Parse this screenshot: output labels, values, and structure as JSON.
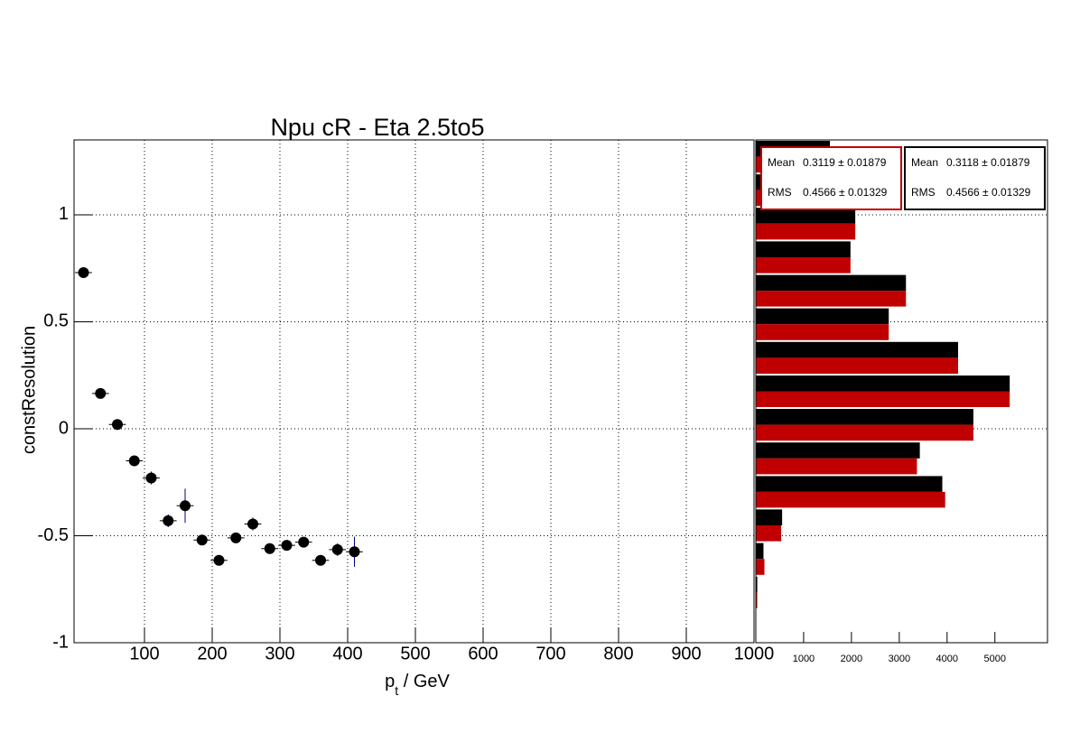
{
  "chart_data": [
    {
      "type": "errorbar",
      "title": "Npu cR - Eta 2.5to5",
      "y_label": "constResolution",
      "x_label": "p",
      "x_label_sub": "t",
      "x_label_rest": " / GeV",
      "x": [
        10,
        35,
        60,
        85,
        110,
        135,
        160,
        185,
        210,
        235,
        260,
        285,
        310,
        335,
        360,
        385,
        410
      ],
      "xerr": [
        12.5,
        12.5,
        12.5,
        12.5,
        12.5,
        12.5,
        12.5,
        12.5,
        12.5,
        12.5,
        12.5,
        12.5,
        12.5,
        12.5,
        12.5,
        12.5,
        12.5
      ],
      "values": [
        0.73,
        0.165,
        0.02,
        -0.15,
        -0.23,
        -0.43,
        -0.36,
        -0.52,
        -0.615,
        -0.51,
        -0.445,
        -0.56,
        -0.545,
        -0.53,
        -0.615,
        -0.565,
        -0.575
      ],
      "errors": [
        0.01,
        0.015,
        0.015,
        0.015,
        0.03,
        0.03,
        0.08,
        0.02,
        0.01,
        0.02,
        0.03,
        0.015,
        0.015,
        0.02,
        0.02,
        0.03,
        0.07
      ],
      "color": "#000000",
      "error_color": "#00008b",
      "xlim": [
        -4,
        1000
      ],
      "xticks": [
        100,
        200,
        300,
        400,
        500,
        600,
        700,
        800,
        900,
        1000
      ],
      "ylim": [
        -1,
        1.35
      ],
      "yticks": [
        -1,
        -0.5,
        0,
        0.5,
        1
      ],
      "grid": true
    },
    {
      "type": "hbar-histogram",
      "bins": [
        -1,
        -0.843,
        -0.687,
        -0.53,
        -0.373,
        -0.217,
        -0.06,
        0.097,
        0.253,
        0.41,
        0.567,
        0.723,
        0.88,
        1.037,
        1.193,
        1.35
      ],
      "series": [
        {
          "color": "#000000",
          "values": [
            0,
            30,
            160,
            550,
            3900,
            3430,
            4550,
            5310,
            4230,
            2780,
            3140,
            1980,
            2080,
            1500,
            1550
          ]
        },
        {
          "color": "#c00000",
          "values": [
            0,
            30,
            180,
            530,
            3960,
            3370,
            4550,
            5310,
            4230,
            2780,
            3140,
            1980,
            2080,
            1500,
            1500
          ]
        }
      ],
      "xlim": [
        0,
        6100
      ],
      "xticks": [
        1000,
        2000,
        3000,
        4000,
        5000
      ],
      "grid": true,
      "stats": [
        {
          "color": "#c00000",
          "mean_label": "Mean",
          "mean": "0.3119 ± 0.01879",
          "rms_label": "RMS",
          "rms": "0.4566 ± 0.01329"
        },
        {
          "color": "#000000",
          "mean_label": "Mean",
          "mean": "0.3118 ± 0.01879",
          "rms_label": "RMS",
          "rms": "0.4566 ± 0.01329"
        }
      ]
    }
  ]
}
